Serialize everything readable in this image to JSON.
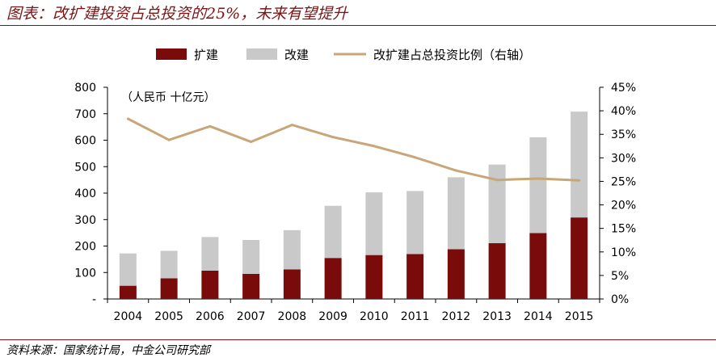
{
  "header": {
    "title": "图表：改扩建投资占总投资的25%，未来有望提升"
  },
  "footer": {
    "source": "资料来源：国家统计局，中金公司研究部"
  },
  "chart_data": {
    "type": "bar",
    "stacked": true,
    "unit_note": "（人民币 十亿元）",
    "categories": [
      "2004",
      "2005",
      "2006",
      "2007",
      "2008",
      "2009",
      "2010",
      "2011",
      "2012",
      "2013",
      "2014",
      "2015"
    ],
    "series": [
      {
        "name": "扩建",
        "type": "bar",
        "axis": "left",
        "color": "#7a0b0b",
        "values": [
          50,
          78,
          107,
          95,
          112,
          155,
          166,
          170,
          188,
          211,
          249,
          308
        ]
      },
      {
        "name": "改建",
        "type": "bar",
        "axis": "left",
        "color": "#c9c9c9",
        "values": [
          122,
          104,
          127,
          128,
          148,
          197,
          237,
          238,
          272,
          297,
          362,
          400
        ]
      },
      {
        "name": "改扩建占总投资比例（右轴）",
        "type": "line",
        "axis": "right",
        "color": "#c8a678",
        "values": [
          0.383,
          0.338,
          0.367,
          0.334,
          0.37,
          0.344,
          0.325,
          0.301,
          0.273,
          0.253,
          0.256,
          0.252
        ]
      }
    ],
    "y_left": {
      "min": 0,
      "max": 800,
      "step": 100,
      "tick_labels": [
        "-",
        "100",
        "200",
        "300",
        "400",
        "500",
        "600",
        "700",
        "800"
      ]
    },
    "y_right": {
      "min": 0,
      "max": 0.45,
      "step": 0.05,
      "tick_labels": [
        "0%",
        "5%",
        "10%",
        "15%",
        "20%",
        "25%",
        "30%",
        "35%",
        "40%",
        "45%"
      ]
    },
    "legend_position": "top-center",
    "grid": false
  }
}
